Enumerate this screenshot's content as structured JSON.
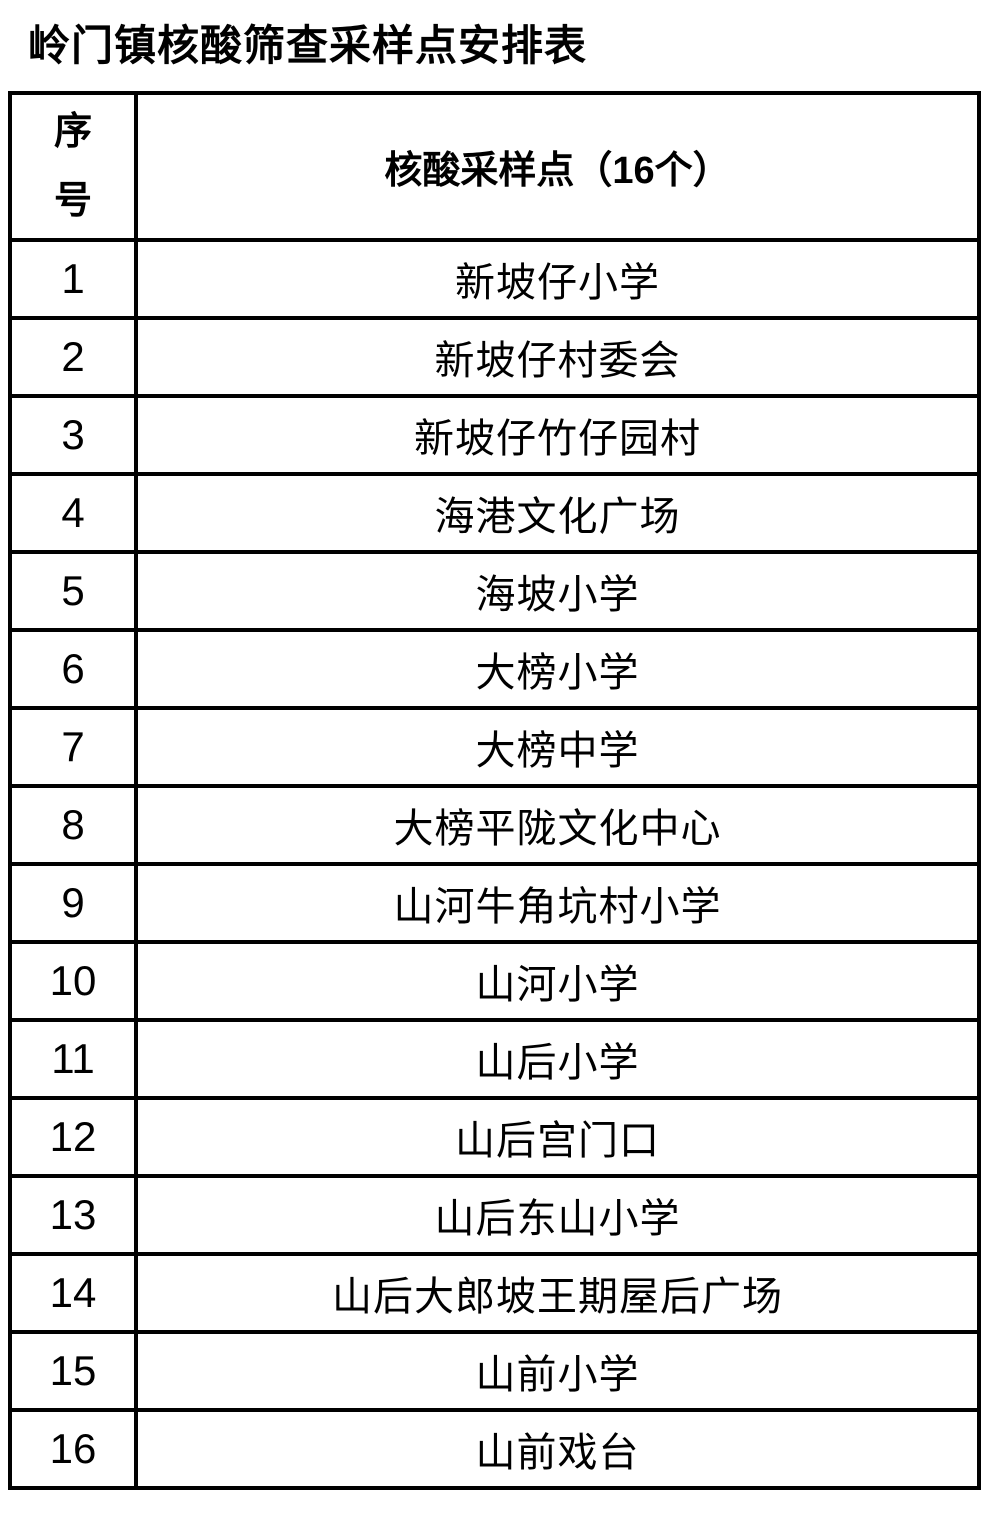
{
  "page": {
    "title": "岭门镇核酸筛查采样点安排表"
  },
  "table": {
    "headers": {
      "index": "序号",
      "site": "核酸采样点（16个）"
    },
    "rows": [
      {
        "index": "1",
        "site": "新坡仔小学"
      },
      {
        "index": "2",
        "site": "新坡仔村委会"
      },
      {
        "index": "3",
        "site": "新坡仔竹仔园村"
      },
      {
        "index": "4",
        "site": "海港文化广场"
      },
      {
        "index": "5",
        "site": "海坡小学"
      },
      {
        "index": "6",
        "site": "大榜小学"
      },
      {
        "index": "7",
        "site": "大榜中学"
      },
      {
        "index": "8",
        "site": "大榜平陇文化中心"
      },
      {
        "index": "9",
        "site": "山河牛角坑村小学"
      },
      {
        "index": "10",
        "site": "山河小学"
      },
      {
        "index": "11",
        "site": "山后小学"
      },
      {
        "index": "12",
        "site": "山后宫门口"
      },
      {
        "index": "13",
        "site": "山后东山小学"
      },
      {
        "index": "14",
        "site": "山后大郎坡王期屋后广场"
      },
      {
        "index": "15",
        "site": "山前小学"
      },
      {
        "index": "16",
        "site": "山前戏台"
      }
    ],
    "colors": {
      "border": "#000000",
      "text": "#000000",
      "background": "#ffffff"
    }
  }
}
